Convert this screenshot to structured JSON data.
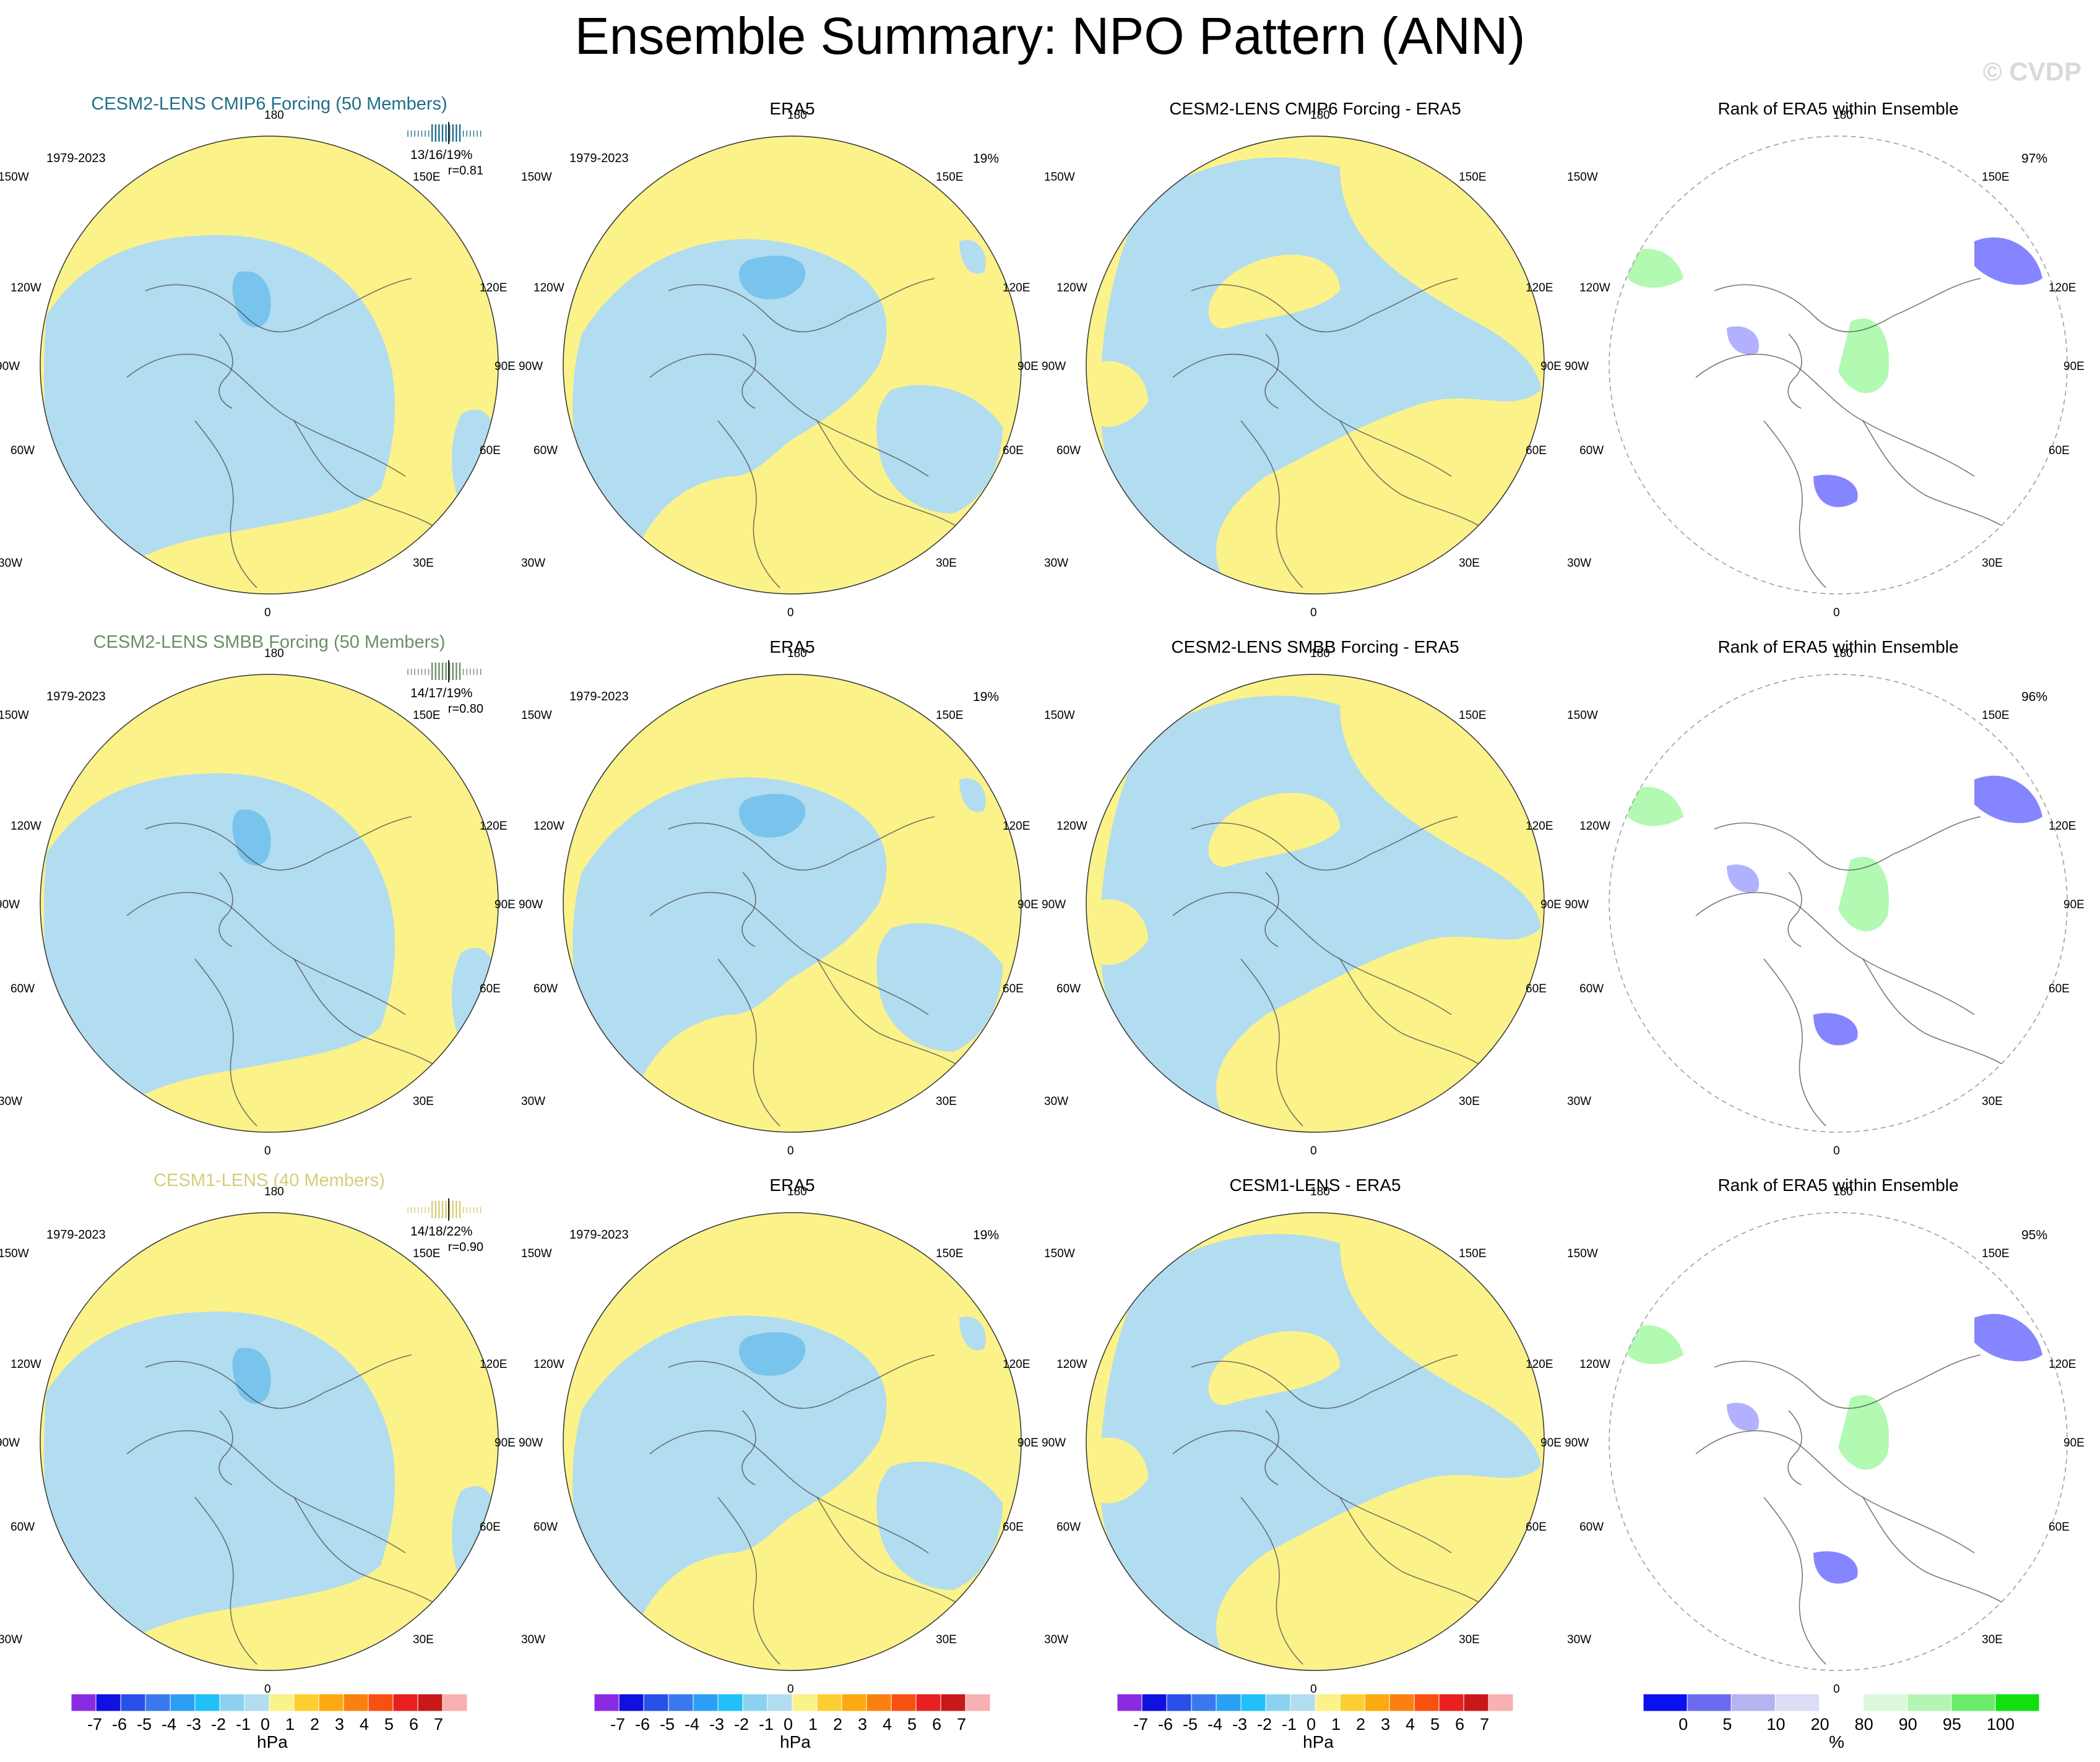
{
  "title": "Ensemble Summary: NPO Pattern (ANN)",
  "watermark": "© CVDP",
  "colors": {
    "blue_neg": "#b2dcf0",
    "blue_mid": "#78c4ec",
    "yellow_pos": "#fbf28a",
    "cmip6_title": "#1f6e8a",
    "smbb_title": "#6b8f68",
    "cesm1_title": "#d8cc7a",
    "rank_lo": "#2020ff",
    "rank_hi": "#22ee22"
  },
  "rows": [
    {
      "model_title": "CESM2-LENS CMIP6 Forcing (50 Members)",
      "model_years": "1979-2023",
      "model_pct": "13/16/19%",
      "model_r": "r=0.81",
      "obs_title": "ERA5",
      "obs_years": "1979-2023",
      "obs_pct": "19%",
      "diff_title": "CESM2-LENS CMIP6 Forcing - ERA5",
      "rank_title": "Rank of ERA5 within Ensemble",
      "rank_pct": "97%"
    },
    {
      "model_title": "CESM2-LENS SMBB Forcing (50 Members)",
      "model_years": "1979-2023",
      "model_pct": "14/17/19%",
      "model_r": "r=0.80",
      "obs_title": "ERA5",
      "obs_years": "1979-2023",
      "obs_pct": "19%",
      "diff_title": "CESM2-LENS SMBB Forcing - ERA5",
      "rank_title": "Rank of ERA5 within Ensemble",
      "rank_pct": "96%"
    },
    {
      "model_title": "CESM1-LENS (40 Members)",
      "model_years": "1979-2023",
      "model_pct": "14/18/22%",
      "model_r": "r=0.90",
      "obs_title": "ERA5",
      "obs_years": "1979-2023",
      "obs_pct": "19%",
      "diff_title": "CESM1-LENS - ERA5",
      "rank_title": "Rank of ERA5 within Ensemble",
      "rank_pct": "95%"
    }
  ],
  "lon_labels": {
    "top": "180",
    "bottom": "0",
    "w150": "150W",
    "e150": "150E",
    "w120": "120W",
    "e120": "120E",
    "w90": "90W",
    "e90": "90E",
    "w60": "60W",
    "e60": "60E",
    "w30": "30W",
    "e30": "30E"
  },
  "colorbar_hpa": {
    "ticks": [
      "-7",
      "-6",
      "-5",
      "-4",
      "-3",
      "-2",
      "-1",
      "0",
      "1",
      "2",
      "3",
      "4",
      "5",
      "6",
      "7"
    ],
    "unit": "hPa",
    "colors": [
      "#8a2be2",
      "#1010e0",
      "#2850e8",
      "#3a78f0",
      "#2aa0f5",
      "#20c0f8",
      "#8cd2f0",
      "#b2dcf0",
      "#fbf28a",
      "#fcd030",
      "#fcaa10",
      "#fc8010",
      "#f85010",
      "#e82020",
      "#c81818",
      "#f8b0b0"
    ]
  },
  "colorbar_rank": {
    "ticks": [
      "0",
      "5",
      "10",
      "20",
      "80",
      "90",
      "95",
      "100"
    ],
    "unit": "%",
    "colors": [
      "#0a10f0",
      "#6a6af0",
      "#b4b4f0",
      "#dcdcf6",
      "#ffffff",
      "#dcf8dc",
      "#b4f4b4",
      "#6cec6c",
      "#10e010"
    ]
  }
}
